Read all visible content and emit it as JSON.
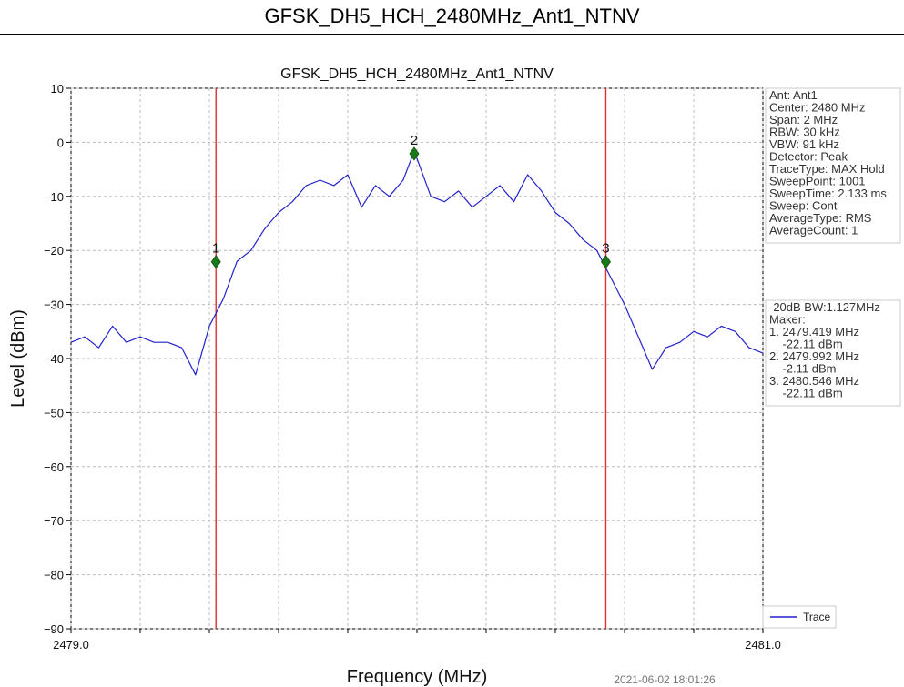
{
  "page": {
    "header_title": "GFSK_DH5_HCH_2480MHz_Ant1_NTNV",
    "timestamp": "2021-06-02 18:01:26"
  },
  "chart_data": {
    "type": "line",
    "title": "GFSK_DH5_HCH_2480MHz_Ant1_NTNV",
    "xlabel": "Frequency (MHz)",
    "ylabel": "Level (dBm)",
    "xlim": [
      2479.0,
      2481.0
    ],
    "ylim": [
      -90,
      10
    ],
    "x_tick_labels": [
      "2479.0",
      "2481.0"
    ],
    "y_ticks": [
      10,
      0,
      -10,
      -20,
      -30,
      -40,
      -50,
      -60,
      -70,
      -80,
      -90
    ],
    "grid": true,
    "colors": {
      "trace": "#2222cc",
      "marker_line": "#e03030",
      "marker": "#1a7a1a"
    },
    "series": [
      {
        "name": "Trace",
        "x": [
          2479.0,
          2479.04,
          2479.08,
          2479.12,
          2479.16,
          2479.2,
          2479.24,
          2479.28,
          2479.32,
          2479.36,
          2479.4,
          2479.44,
          2479.48,
          2479.52,
          2479.56,
          2479.6,
          2479.64,
          2479.68,
          2479.72,
          2479.76,
          2479.8,
          2479.84,
          2479.88,
          2479.92,
          2479.96,
          2479.99,
          2480.0,
          2480.04,
          2480.08,
          2480.12,
          2480.16,
          2480.2,
          2480.24,
          2480.28,
          2480.32,
          2480.36,
          2480.4,
          2480.44,
          2480.48,
          2480.52,
          2480.56,
          2480.6,
          2480.64,
          2480.68,
          2480.72,
          2480.76,
          2480.8,
          2480.84,
          2480.88,
          2480.92,
          2480.96,
          2481.0
        ],
        "y": [
          -37,
          -36,
          -38,
          -34,
          -37,
          -36,
          -37,
          -37,
          -38,
          -43,
          -34,
          -29,
          -22,
          -20,
          -16,
          -13,
          -11,
          -8,
          -7,
          -8,
          -6,
          -12,
          -8,
          -10,
          -7,
          -2,
          -3,
          -10,
          -11,
          -9,
          -12,
          -10,
          -8,
          -11,
          -6,
          -9,
          -13,
          -15,
          -18,
          -20,
          -25,
          -30,
          -36,
          -42,
          -38,
          -37,
          -35,
          -36,
          -34,
          -35,
          -38,
          -39
        ]
      }
    ],
    "markers": [
      {
        "label": "1",
        "x": 2479.419,
        "y": -22.11
      },
      {
        "label": "2",
        "x": 2479.992,
        "y": -2.11
      },
      {
        "label": "3",
        "x": 2480.546,
        "y": -22.11
      }
    ],
    "vertical_lines": [
      2479.419,
      2480.546
    ],
    "info_box": [
      "Ant: Ant1",
      "Center: 2480 MHz",
      "Span: 2 MHz",
      "RBW: 30 kHz",
      "VBW: 91 kHz",
      "Detector: Peak",
      "TraceType: MAX Hold",
      "SweepPoint: 1001",
      "SweepTime: 2.133 ms",
      "Sweep: Cont",
      "AverageType: RMS",
      "AverageCount: 1"
    ],
    "result_box": [
      "-20dB BW:1.127MHz",
      "Maker:",
      "1. 2479.419 MHz",
      "   -22.11 dBm",
      "2. 2479.992 MHz",
      "   -2.11 dBm",
      "3. 2480.546 MHz",
      "   -22.11 dBm"
    ],
    "legend": {
      "entries": [
        "Trace"
      ],
      "placement": "bottom-right"
    }
  }
}
